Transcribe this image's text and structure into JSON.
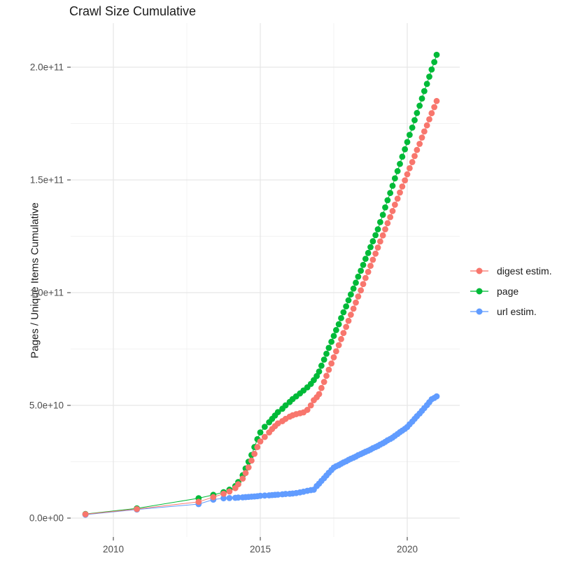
{
  "title": "Crawl Size Cumulative",
  "y_axis": {
    "title": "Pages / Unique Items Cumulative",
    "tick_labels": [
      "0.0e+00",
      "5.0e+10",
      "1.0e+11",
      "1.5e+11",
      "2.0e+11"
    ],
    "tick_values_e9": [
      0,
      50,
      100,
      150,
      200
    ],
    "minor_values_e9": [
      25,
      75,
      125,
      175
    ]
  },
  "x_axis": {
    "tick_labels": [
      "2010",
      "2015",
      "2020"
    ],
    "tick_values": [
      2010,
      2015,
      2020
    ],
    "minor_values": [
      2012.5,
      2017.5
    ]
  },
  "legend": {
    "position": "right",
    "items": [
      {
        "label": "digest estim.",
        "color": "#F8766D"
      },
      {
        "label": "page",
        "color": "#00BA38"
      },
      {
        "label": "url estim.",
        "color": "#619CFF"
      }
    ]
  },
  "colors": {
    "grid_major": "#e6e6e6",
    "grid_minor": "#f2f2f2",
    "tick_mark": "#333333",
    "tick_text": "#4d4d4d"
  },
  "chart_data": {
    "type": "scatter",
    "title": "Crawl Size Cumulative",
    "xlabel": "",
    "ylabel": "Pages / Unique Items Cumulative",
    "legend_position": "right",
    "grid": true,
    "xlim": [
      2008.5,
      2021.8
    ],
    "ylim_e9": [
      0,
      210
    ],
    "units": "values in billions of items (1e9)",
    "x_years": [
      2009.05,
      2010.8,
      2012.9,
      2013.4,
      2013.75,
      2013.95,
      2014.15,
      2014.25,
      2014.4,
      2014.5,
      2014.6,
      2014.7,
      2014.8,
      2014.9,
      2015.0,
      2015.15,
      2015.3,
      2015.4,
      2015.5,
      2015.6,
      2015.75,
      2015.86,
      2016.0,
      2016.1,
      2016.22,
      2016.35,
      2016.47,
      2016.6,
      2016.72,
      2016.82,
      2016.92,
      2017.0,
      2017.08,
      2017.17,
      2017.25,
      2017.33,
      2017.42,
      2017.5,
      2017.58,
      2017.67,
      2017.75,
      2017.83,
      2017.92,
      2018.0,
      2018.08,
      2018.17,
      2018.25,
      2018.33,
      2018.42,
      2018.5,
      2018.58,
      2018.67,
      2018.75,
      2018.83,
      2018.92,
      2019.0,
      2019.08,
      2019.17,
      2019.25,
      2019.33,
      2019.42,
      2019.5,
      2019.58,
      2019.67,
      2019.75,
      2019.83,
      2019.92,
      2020.0,
      2020.08,
      2020.17,
      2020.25,
      2020.33,
      2020.42,
      2020.5,
      2020.58,
      2020.67,
      2020.75,
      2020.83,
      2020.92,
      2021.0
    ],
    "series": [
      {
        "name": "digest estim.",
        "color": "#F8766D",
        "values_e9": [
          1.7,
          4.0,
          7.2,
          9.3,
          10.8,
          11.8,
          13.3,
          15.0,
          17.5,
          20.0,
          22.5,
          25.5,
          28.5,
          31.5,
          34.0,
          36.0,
          38.0,
          39.5,
          40.8,
          42.0,
          43.0,
          44.0,
          45.0,
          45.6,
          46.1,
          46.5,
          46.9,
          48.0,
          50.0,
          52.3,
          53.6,
          55.0,
          57.7,
          60.4,
          63.1,
          65.8,
          68.6,
          71.3,
          74.0,
          76.7,
          79.4,
          82.1,
          84.8,
          87.5,
          90.2,
          92.9,
          95.6,
          98.3,
          101.0,
          103.8,
          106.5,
          109.2,
          111.9,
          114.6,
          117.3,
          120.0,
          122.7,
          125.4,
          128.1,
          130.8,
          133.5,
          136.2,
          139.0,
          141.7,
          144.4,
          147.1,
          149.8,
          152.5,
          155.2,
          157.9,
          160.6,
          163.3,
          166.0,
          168.8,
          171.5,
          174.2,
          176.9,
          179.6,
          182.3,
          185.0
        ]
      },
      {
        "name": "page",
        "color": "#00BA38",
        "values_e9": [
          1.8,
          4.3,
          8.8,
          10.3,
          11.5,
          12.6,
          14.2,
          16.0,
          19.0,
          22.0,
          25.0,
          28.0,
          31.5,
          35.0,
          38.0,
          40.5,
          42.5,
          44.0,
          45.5,
          47.0,
          48.5,
          50.0,
          51.5,
          52.8,
          54.0,
          55.3,
          56.6,
          58.0,
          59.5,
          61.2,
          63.0,
          65.0,
          67.6,
          70.3,
          72.9,
          75.5,
          78.2,
          80.8,
          83.4,
          86.0,
          88.7,
          91.3,
          93.9,
          96.6,
          99.2,
          101.8,
          104.4,
          107.1,
          109.7,
          112.3,
          115.0,
          117.6,
          120.2,
          122.8,
          125.5,
          128.1,
          131.3,
          134.5,
          137.8,
          141.0,
          144.2,
          147.4,
          150.7,
          153.9,
          157.1,
          160.3,
          163.6,
          166.8,
          170.0,
          173.2,
          176.5,
          179.7,
          182.9,
          186.1,
          189.4,
          192.6,
          195.8,
          199.0,
          202.3,
          205.5
        ]
      },
      {
        "name": "url estim.",
        "color": "#619CFF",
        "values_e9": [
          1.5,
          3.8,
          6.2,
          8.2,
          8.8,
          8.9,
          9.0,
          9.1,
          9.2,
          9.3,
          9.4,
          9.5,
          9.6,
          9.7,
          9.9,
          10.0,
          10.1,
          10.2,
          10.3,
          10.4,
          10.55,
          10.7,
          10.8,
          10.9,
          11.1,
          11.4,
          11.7,
          12.1,
          12.4,
          12.6,
          14.2,
          15.3,
          16.5,
          17.7,
          18.9,
          20.1,
          21.3,
          22.4,
          23.0,
          23.5,
          24.1,
          24.7,
          25.2,
          25.8,
          26.3,
          26.8,
          27.3,
          27.9,
          28.4,
          28.9,
          29.4,
          29.9,
          30.4,
          31.0,
          31.5,
          32.0,
          32.6,
          33.2,
          33.8,
          34.5,
          35.1,
          35.7,
          36.5,
          37.3,
          38.1,
          38.8,
          39.6,
          40.4,
          41.6,
          42.8,
          44.0,
          45.2,
          46.4,
          47.6,
          48.8,
          50.1,
          51.4,
          52.7,
          53.3,
          54.0
        ]
      }
    ]
  }
}
